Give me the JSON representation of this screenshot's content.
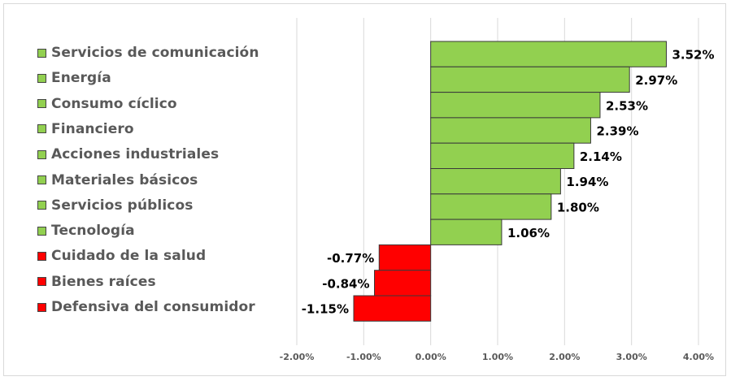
{
  "chart_data": {
    "type": "bar",
    "orientation": "horizontal",
    "categories": [
      "Servicios de comunicación",
      "Energía",
      "Consumo cíclico",
      "Financiero",
      "Acciones industriales",
      "Materiales básicos",
      "Servicios públicos",
      "Tecnología",
      "Cuidado de la salud",
      "Bienes raíces",
      "Defensiva del consumidor"
    ],
    "values": [
      3.52,
      2.97,
      2.53,
      2.39,
      2.14,
      1.94,
      1.8,
      1.06,
      -0.77,
      -0.84,
      -1.15
    ],
    "data_labels": [
      "3.52%",
      "2.97%",
      "2.53%",
      "2.39%",
      "2.14%",
      "1.94%",
      "1.80%",
      "1.06%",
      "-0.77%",
      "-0.84%",
      "-1.15%"
    ],
    "xlim": [
      -2,
      4
    ],
    "x_ticks": [
      -2,
      -1,
      0,
      1,
      2,
      3,
      4
    ],
    "x_tick_labels": [
      "-2.00%",
      "-1.00%",
      "0.00%",
      "1.00%",
      "2.00%",
      "3.00%",
      "4.00%"
    ],
    "title": "",
    "xlabel": "",
    "ylabel": "",
    "grid": "vertical",
    "legend_position": "left",
    "colors": {
      "positive": "#92d050",
      "negative": "#ff0000",
      "bar_border": "#3a3a3a",
      "grid": "#d9d9d9",
      "label_text": "#000000",
      "tick_text": "#595959",
      "legend_text": "#595959"
    }
  }
}
